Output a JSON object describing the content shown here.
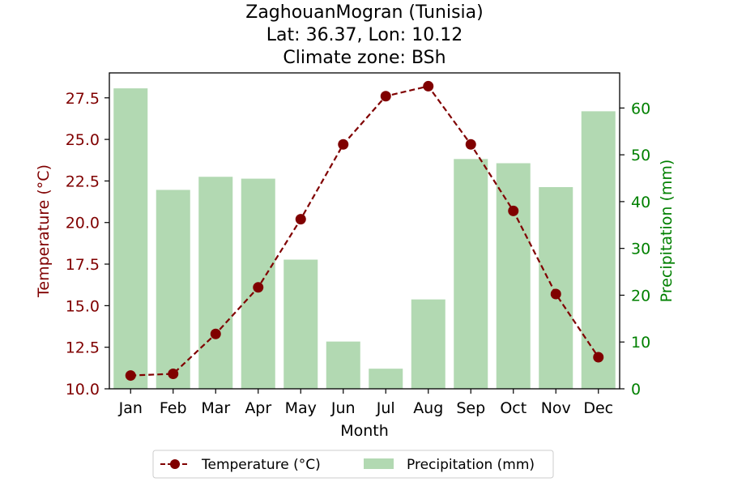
{
  "chart_data": {
    "type": "bar+line",
    "title": [
      "ZaghouanMogran (Tunisia)",
      "Lat: 36.37, Lon: 10.12",
      "Climate zone: BSh"
    ],
    "xlabel": "Month",
    "ylabel_left": "Temperature (°C)",
    "ylabel_right": "Precipitation (mm)",
    "categories": [
      "Jan",
      "Feb",
      "Mar",
      "Apr",
      "May",
      "Jun",
      "Jul",
      "Aug",
      "Sep",
      "Oct",
      "Nov",
      "Dec"
    ],
    "ylim_left": [
      10.0,
      29.0
    ],
    "yticks_left": [
      "10.0",
      "12.5",
      "15.0",
      "17.5",
      "20.0",
      "22.5",
      "25.0",
      "27.5"
    ],
    "ylim_right": [
      0,
      67.5
    ],
    "yticks_right": [
      "0",
      "10",
      "20",
      "30",
      "40",
      "50",
      "60"
    ],
    "series": [
      {
        "name": "Temperature (°C)",
        "type": "line",
        "axis": "left",
        "color": "#800000",
        "values": [
          10.8,
          10.9,
          13.3,
          16.1,
          20.2,
          24.7,
          27.6,
          28.2,
          24.7,
          20.7,
          15.7,
          11.9
        ]
      },
      {
        "name": "Precipitation (mm)",
        "type": "bar",
        "axis": "right",
        "color": "#b2d9b2",
        "values": [
          64.2,
          42.5,
          45.3,
          44.9,
          27.6,
          10.1,
          4.3,
          19.1,
          49.1,
          48.2,
          43.1,
          59.3
        ]
      }
    ],
    "legend_position": "bottom-center",
    "colors": {
      "left_axis": "#800000",
      "right_axis": "#008000"
    }
  }
}
